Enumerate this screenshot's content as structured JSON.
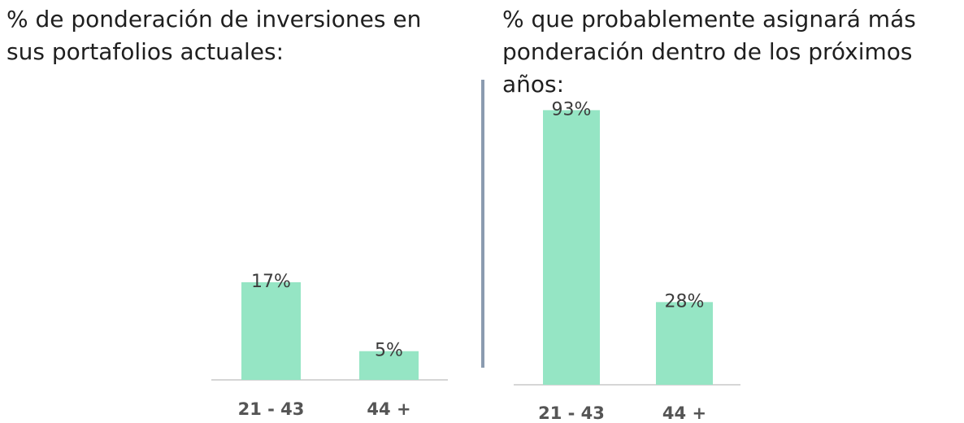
{
  "chart_data": [
    {
      "type": "bar",
      "title": "% de ponderación de inversiones en sus portafolios actuales:",
      "categories": [
        "21 - 43",
        "44 +"
      ],
      "values": [
        17,
        5
      ],
      "data_labels": [
        "17%",
        "5%"
      ],
      "ylim": [
        0,
        100
      ],
      "grid": false,
      "legend": "none",
      "bar_color": "#95e5c4"
    },
    {
      "type": "bar",
      "title": "% que probablemente asignará más ponderación dentro de los próximos años:",
      "categories": [
        "21 - 43",
        "44 +"
      ],
      "values": [
        93,
        28
      ],
      "data_labels": [
        "93%",
        "28%"
      ],
      "ylim": [
        0,
        100
      ],
      "grid": false,
      "legend": "none",
      "bar_color": "#95e5c4"
    }
  ],
  "colors": {
    "bar": "#95e5c4",
    "divider": "#8b9bb0",
    "baseline": "#d6d6d6",
    "text": "#1f1f1f"
  }
}
